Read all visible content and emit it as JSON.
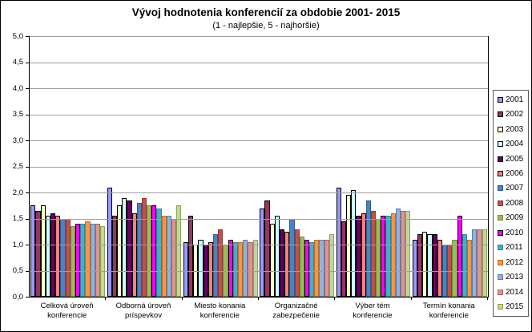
{
  "chart_data": {
    "type": "bar",
    "title": "Vývoj hodnotenia konferencií  za obdobie 2001- 2015",
    "subtitle": "(1 - najlepšie,  5 - najhoršie)",
    "ylim": [
      0,
      5
    ],
    "ytick_step": 0.5,
    "ytick_labels": [
      "0,0",
      "0,5",
      "1,0",
      "1,5",
      "2,0",
      "2,5",
      "3,0",
      "3,5",
      "4,0",
      "4,5",
      "5,0"
    ],
    "grid": true,
    "legend_position": "right",
    "categories": [
      "Celková úroveň\nkonferencie",
      "Odborná úroveň\npríspevkov",
      "Miesto konania\nkonferencie",
      "Organizačné\nzabezpečenie",
      "Výber tém\nkonferencie",
      "Termín konania\nkonferencie"
    ],
    "series": [
      {
        "name": "2001",
        "fill": "#9999FF",
        "border": "#000000",
        "values": [
          1.75,
          2.1,
          1.05,
          1.7,
          2.1,
          1.1
        ]
      },
      {
        "name": "2002",
        "fill": "#993366",
        "border": "#000000",
        "values": [
          1.65,
          1.55,
          1.55,
          1.85,
          1.45,
          1.2
        ]
      },
      {
        "name": "2003",
        "fill": "#FFFFCC",
        "border": "#000000",
        "values": [
          1.75,
          1.75,
          1.0,
          1.4,
          1.95,
          1.25
        ]
      },
      {
        "name": "2004",
        "fill": "#CCFFFF",
        "border": "#000000",
        "values": [
          1.55,
          1.9,
          1.1,
          1.55,
          2.05,
          1.2
        ]
      },
      {
        "name": "2005",
        "fill": "#660066",
        "border": "#000000",
        "values": [
          1.6,
          1.85,
          1.0,
          1.3,
          1.55,
          1.2
        ]
      },
      {
        "name": "2006",
        "fill": "#FF8080",
        "border": "#000000",
        "values": [
          1.55,
          1.6,
          1.05,
          1.25,
          1.6,
          1.1
        ]
      },
      {
        "name": "2007",
        "fill": "#4F81BD",
        "border": "#2E5C8A",
        "values": [
          1.5,
          1.8,
          1.2,
          1.5,
          1.85,
          1.0
        ]
      },
      {
        "name": "2008",
        "fill": "#C0504D",
        "border": "#8B3A38",
        "values": [
          1.5,
          1.9,
          1.3,
          1.3,
          1.65,
          1.0
        ]
      },
      {
        "name": "2009",
        "fill": "#9BBB59",
        "border": "#71893F",
        "values": [
          1.35,
          1.75,
          1.0,
          1.15,
          1.5,
          1.1
        ]
      },
      {
        "name": "2010",
        "fill": "#FF00FF",
        "border": "#000000",
        "values": [
          1.4,
          1.75,
          1.1,
          1.1,
          1.55,
          1.55
        ]
      },
      {
        "name": "2011",
        "fill": "#4BACC6",
        "border": "#31859B",
        "values": [
          1.4,
          1.7,
          1.05,
          1.05,
          1.55,
          1.2
        ]
      },
      {
        "name": "2012",
        "fill": "#F79646",
        "border": "#B66D31",
        "values": [
          1.45,
          1.55,
          1.05,
          1.1,
          1.6,
          1.1
        ]
      },
      {
        "name": "2013",
        "fill": "#95B3D7",
        "border": "#5F7DA6",
        "values": [
          1.4,
          1.55,
          1.1,
          1.1,
          1.7,
          1.3
        ]
      },
      {
        "name": "2014",
        "fill": "#D99694",
        "border": "#A56765",
        "values": [
          1.4,
          1.5,
          1.05,
          1.1,
          1.65,
          1.3
        ]
      },
      {
        "name": "2015",
        "fill": "#C3D69B",
        "border": "#8CA357",
        "values": [
          1.35,
          1.75,
          1.1,
          1.2,
          1.65,
          1.3
        ]
      }
    ]
  }
}
